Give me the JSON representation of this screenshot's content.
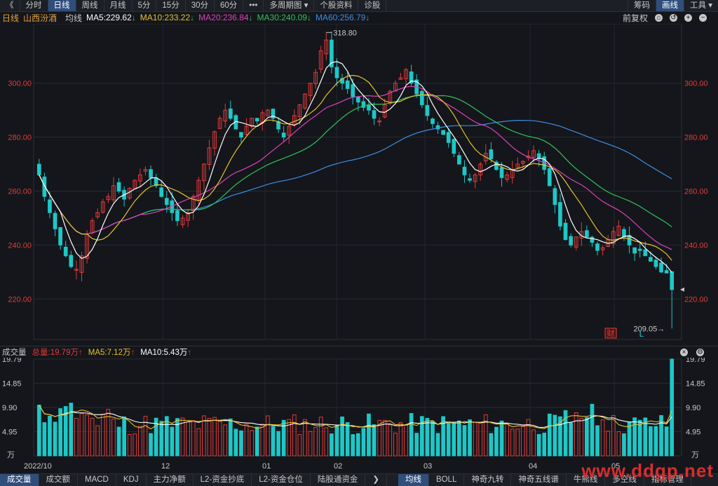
{
  "toolbar": {
    "back": "《",
    "items": [
      "分时",
      "日线",
      "周线",
      "月线",
      "5分",
      "15分",
      "30分",
      "60分",
      "•••",
      "多周期图 ▾",
      "个股资料",
      "诊股"
    ],
    "active": 1,
    "right": [
      "筹码",
      "画线",
      "工具 ▾"
    ]
  },
  "info": {
    "period": "日线",
    "stock": "山西汾酒",
    "ma_label": "均线",
    "ma5": "MA5:229.62",
    "ma10": "MA10:233.22",
    "ma20": "MA20:236.84",
    "ma30": "MA30:240.09",
    "ma60": "MA60:256.79",
    "adjust": "前复权",
    "colors": {
      "ma5": "#ffffff",
      "ma10": "#e6c229",
      "ma20": "#e040c0",
      "ma30": "#2fc25b",
      "ma60": "#3a8ee6",
      "up": "#e23b3b",
      "down": "#1fc7c7"
    }
  },
  "main_chart": {
    "high_label": "318.80",
    "low_label": "209.05",
    "badge_cai": "财",
    "badge_l": "L",
    "y_ticks": [
      "300.00",
      "280.00",
      "260.00",
      "240.00",
      "220.00"
    ]
  },
  "volume": {
    "title": "成交量",
    "total": "总量:19.79万",
    "ma5": "MA5:7.12万",
    "ma10": "MA10:5.43万",
    "y_ticks": [
      "19.79",
      "14.85",
      "9.90",
      "4.95",
      "万"
    ],
    "x_ticks": [
      "2022/10",
      "12",
      "01",
      "02",
      "03",
      "04",
      "05"
    ]
  },
  "bottom_tabs": {
    "left": [
      "成交量",
      "成交额",
      "MACD",
      "KDJ",
      "主力净额",
      "L2-资金抄底",
      "L2-资金仓位",
      "陆股通资金"
    ],
    "arrow": "❯",
    "right": [
      "均线",
      "BOLL",
      "神奇九转",
      "神奇五线谱",
      "牛熊线",
      "多空线",
      "指标管理"
    ]
  },
  "watermark": "www.ddgp.net",
  "chart_data": {
    "type": "candlestick",
    "ylim": [
      205,
      322
    ],
    "high": 318.8,
    "low": 209.05,
    "last_close": 229.62,
    "ma_last": {
      "MA5": 229.62,
      "MA10": 233.22,
      "MA20": 236.84,
      "MA30": 240.09,
      "MA60": 256.79
    },
    "volume_max": 19.79,
    "volume_unit": "万",
    "close_series": [
      266,
      258,
      252,
      246,
      240,
      236,
      232,
      231,
      236,
      244,
      249,
      252,
      256,
      258,
      262,
      260,
      257,
      261,
      264,
      266,
      268,
      265,
      262,
      258,
      255,
      252,
      249,
      250,
      252,
      258,
      264,
      270,
      276,
      282,
      287,
      290,
      287,
      283,
      280,
      284,
      287,
      286,
      289,
      290,
      287,
      283,
      280,
      284,
      288,
      292,
      296,
      300,
      304,
      312,
      316,
      306,
      302,
      300,
      298,
      295,
      293,
      291,
      290,
      287,
      286,
      292,
      297,
      300,
      302,
      305,
      300,
      296,
      292,
      288,
      285,
      283,
      281,
      278,
      274,
      270,
      266,
      264,
      266,
      270,
      274,
      272,
      268,
      265,
      266,
      268,
      270,
      271,
      273,
      275,
      272,
      268,
      262,
      255,
      247,
      242,
      240,
      243,
      245,
      243,
      241,
      238,
      239,
      242,
      245,
      247,
      243,
      240,
      237,
      238,
      236,
      234,
      232,
      230,
      229.62
    ]
  }
}
